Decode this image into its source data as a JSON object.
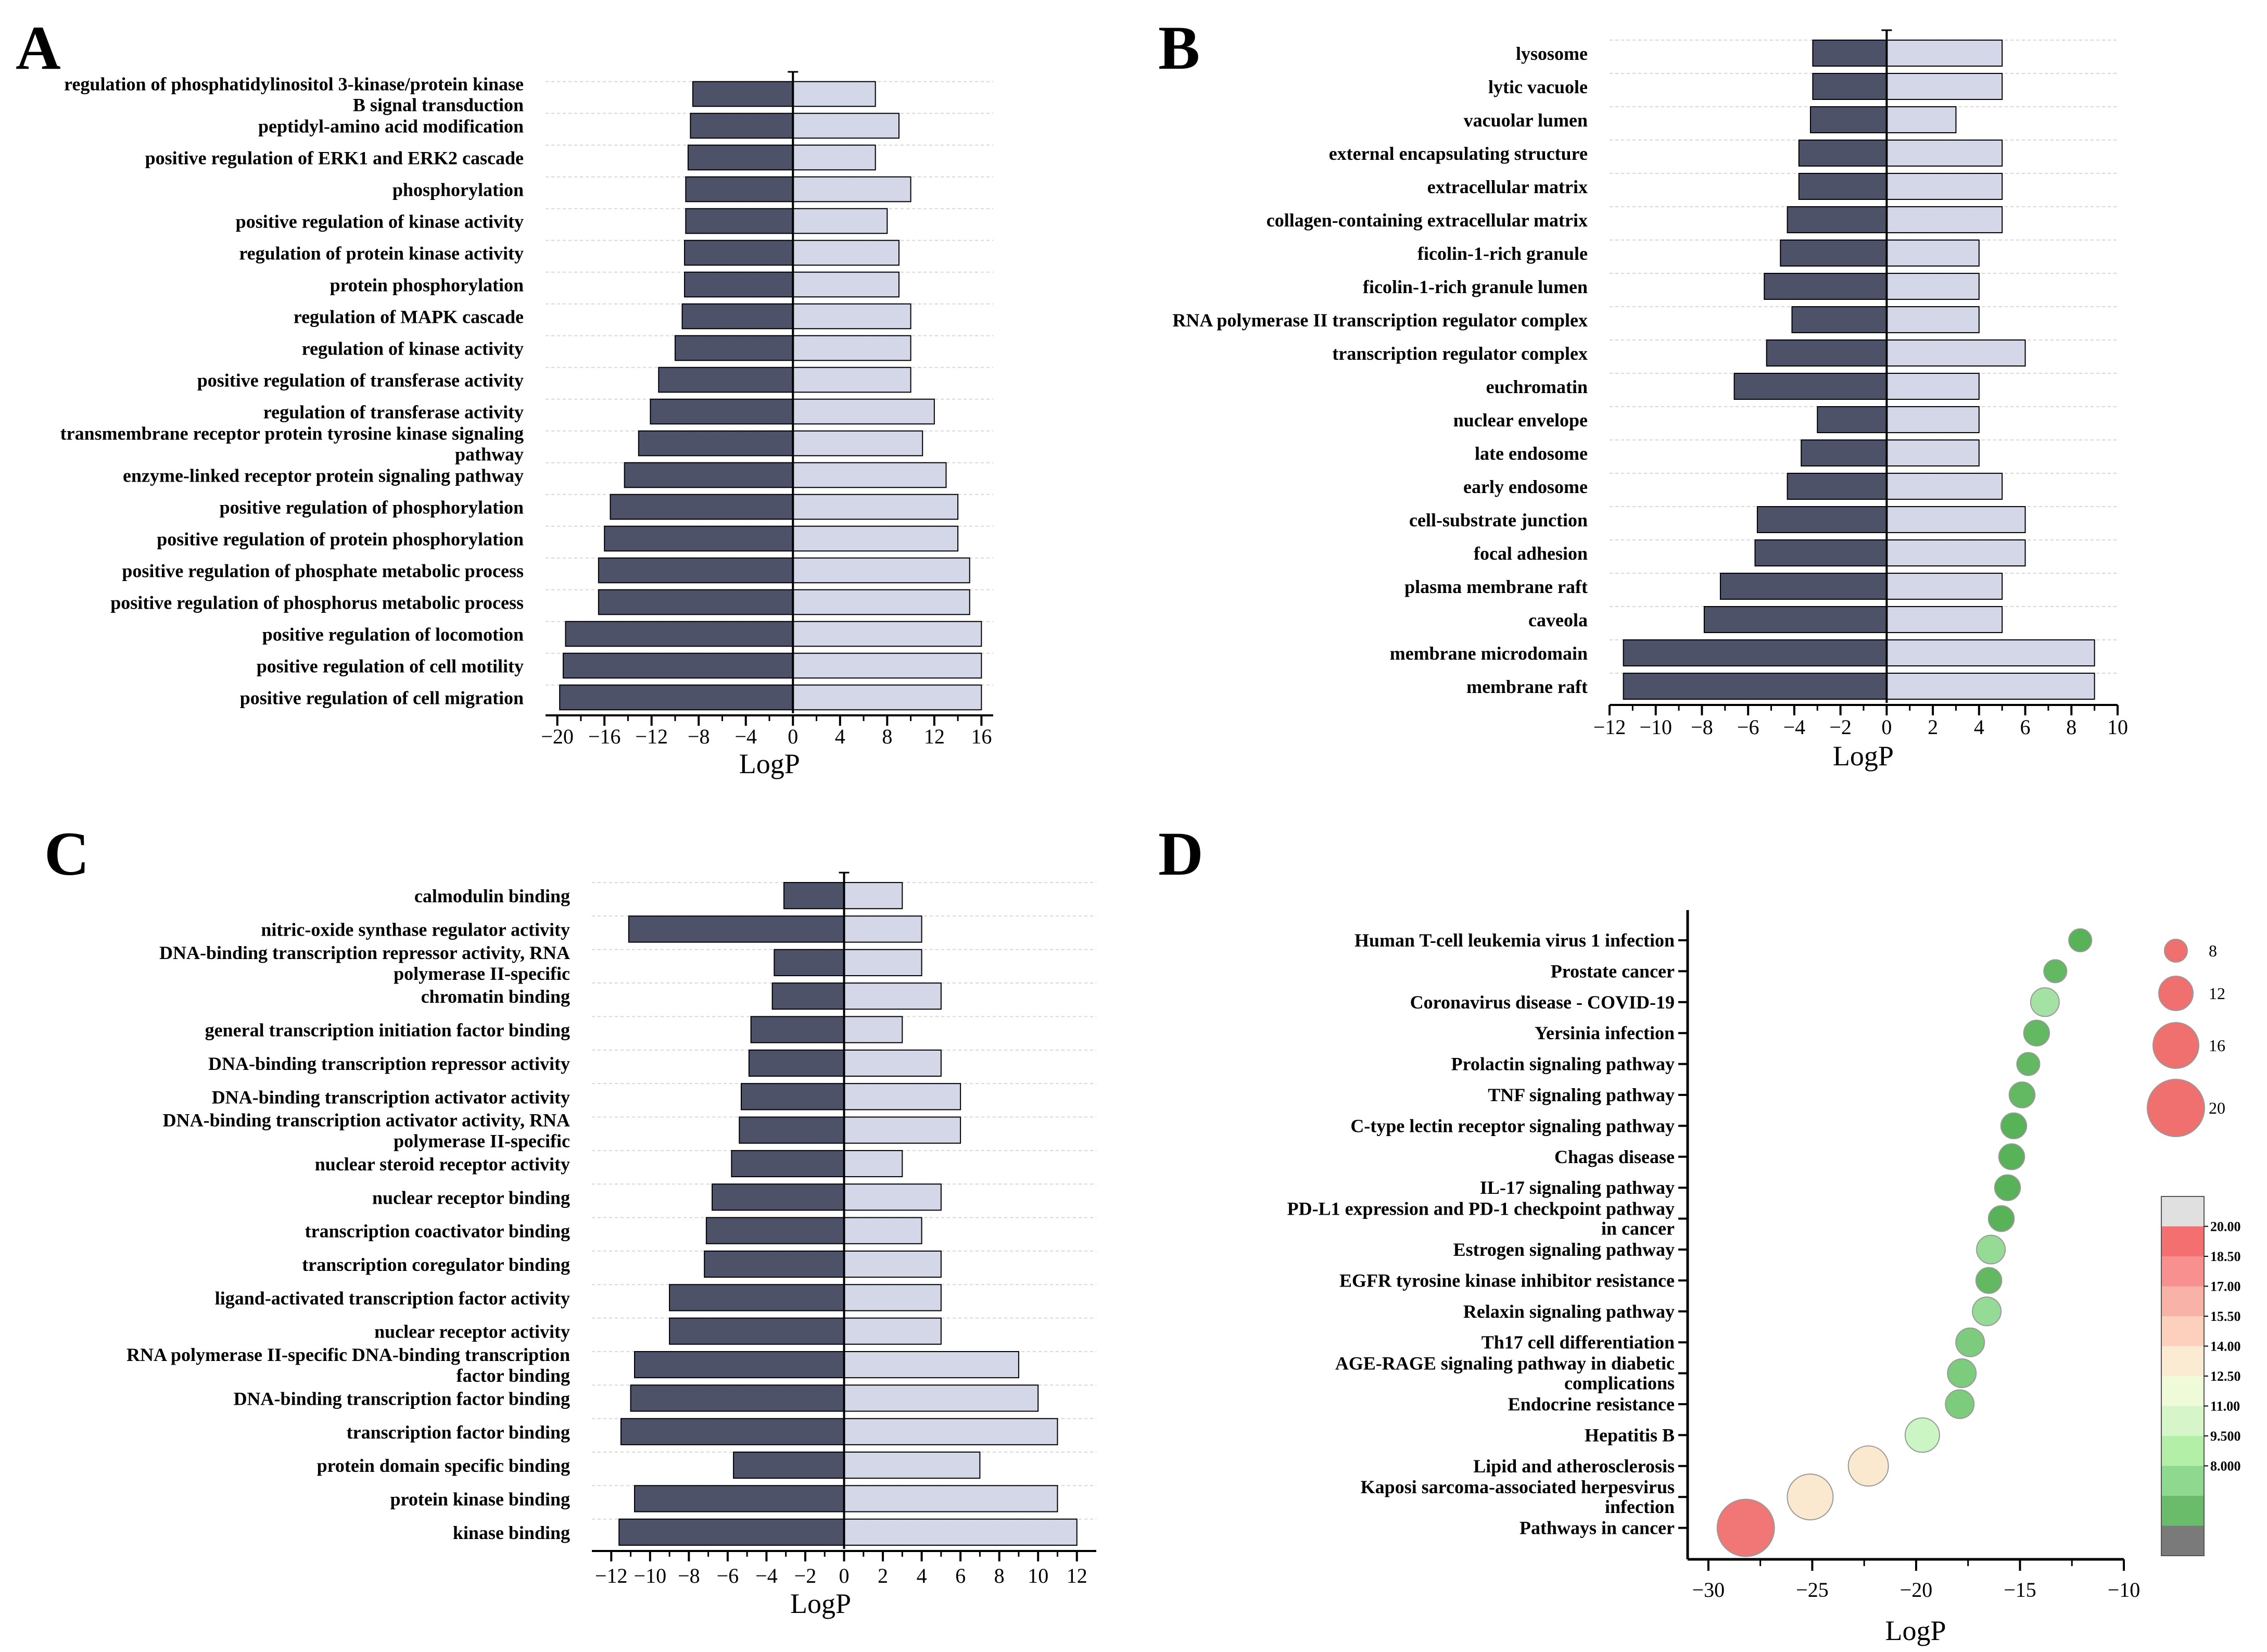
{
  "chart_data": [
    {
      "panel": "A",
      "type": "bar",
      "orientation": "horizontal",
      "categories": [
        "regulation of phosphatidylinositol 3-kinase/protein kinase B signal transduction",
        "peptidyl-amino acid modification",
        "positive regulation of ERK1 and ERK2 cascade",
        "phosphorylation",
        "positive regulation of kinase activity",
        "regulation of protein kinase activity",
        "protein phosphorylation",
        "regulation of MAPK cascade",
        "regulation of kinase activity",
        "positive regulation of transferase activity",
        "regulation of transferase activity",
        "transmembrane receptor protein tyrosine kinase signaling pathway",
        "enzyme-linked receptor protein signaling pathway",
        "positive regulation of phosphorylation",
        "positive regulation of protein phosphorylation",
        "positive regulation of phosphate metabolic process",
        "positive regulation of phosphorus metabolic process",
        "positive regulation of locomotion",
        "positive regulation of cell motility",
        "positive regulation of cell migration"
      ],
      "series": [
        {
          "name": "LogP",
          "color": "#4d5269",
          "values": [
            -8.5,
            -8.7,
            -8.9,
            -9.1,
            -9.1,
            -9.2,
            -9.2,
            -9.4,
            -10.0,
            -11.4,
            -12.1,
            -13.1,
            -14.3,
            -15.5,
            -16.0,
            -16.5,
            -16.5,
            -19.3,
            -19.5,
            -19.8
          ]
        },
        {
          "name": "-LogP",
          "color": "#d3d7e8",
          "values": [
            7.0,
            9.0,
            7.0,
            10.0,
            8.0,
            9.0,
            9.0,
            10.0,
            10.0,
            10.0,
            12.0,
            11.0,
            13.0,
            14.0,
            14.0,
            15.0,
            15.0,
            16.0,
            16.0,
            16.0
          ]
        }
      ],
      "xlabel": "LogP",
      "xlim": [
        -21,
        17
      ],
      "xticks": [
        -20,
        -16,
        -12,
        -8,
        -4,
        0,
        4,
        8,
        12,
        16
      ],
      "xtick_labels": [
        "−20",
        "−16",
        "−12",
        "−8",
        "−4",
        "0",
        "4",
        "8",
        "12",
        "16"
      ]
    },
    {
      "panel": "B",
      "type": "bar",
      "orientation": "horizontal",
      "categories": [
        "lysosome",
        "lytic vacuole",
        "vacuolar lumen",
        "external encapsulating structure",
        "extracellular matrix",
        "collagen-containing extracellular matrix",
        "ficolin-1-rich granule",
        "ficolin-1-rich granule lumen",
        "RNA polymerase II transcription regulator complex",
        "transcription regulator complex",
        "euchromatin",
        "nuclear envelope",
        "late endosome",
        "early endosome",
        "cell-substrate junction",
        "focal adhesion",
        "plasma membrane raft",
        "caveola",
        "membrane microdomain",
        "membrane raft"
      ],
      "series": [
        {
          "name": "LogP",
          "color": "#4d5269",
          "values": [
            -3.2,
            -3.2,
            -3.3,
            -3.8,
            -3.8,
            -4.3,
            -4.6,
            -5.3,
            -4.1,
            -5.2,
            -6.6,
            -3.0,
            -3.7,
            -4.3,
            -5.6,
            -5.7,
            -7.2,
            -7.9,
            -11.4,
            -11.4
          ]
        },
        {
          "name": "-LogP",
          "color": "#d3d7e8",
          "values": [
            5.0,
            5.0,
            3.0,
            5.0,
            5.0,
            5.0,
            4.0,
            4.0,
            4.0,
            6.0,
            4.0,
            4.0,
            4.0,
            5.0,
            6.0,
            6.0,
            5.0,
            5.0,
            9.0,
            9.0
          ]
        }
      ],
      "xlabel": "LogP",
      "xlim": [
        -12,
        10
      ],
      "xticks": [
        -12,
        -10,
        -8,
        -6,
        -4,
        -2,
        0,
        2,
        4,
        6,
        8,
        10
      ],
      "xtick_labels": [
        "−12",
        "−10",
        "−8",
        "−6",
        "−4",
        "−2",
        "0",
        "2",
        "4",
        "6",
        "8",
        "10"
      ]
    },
    {
      "panel": "C",
      "type": "bar",
      "orientation": "horizontal",
      "categories": [
        "calmodulin binding",
        "nitric-oxide synthase regulator activity",
        "DNA-binding transcription repressor activity, RNA polymerase II-specific",
        "chromatin binding",
        "general transcription initiation factor binding",
        "DNA-binding transcription repressor activity",
        "DNA-binding transcription activator activity",
        "DNA-binding transcription activator activity, RNA polymerase II-specific",
        "nuclear steroid receptor activity",
        "nuclear receptor binding",
        "transcription coactivator binding",
        "transcription coregulator binding",
        "ligand-activated transcription factor activity",
        "nuclear receptor activity",
        "RNA polymerase II-specific DNA-binding transcription factor binding",
        "DNA-binding transcription factor binding",
        "transcription factor binding",
        "protein domain specific binding",
        "protein kinase binding",
        "kinase binding"
      ],
      "series": [
        {
          "name": "LogP",
          "color": "#4d5269",
          "values": [
            -3.1,
            -11.1,
            -3.6,
            -3.7,
            -4.8,
            -4.9,
            -5.3,
            -5.4,
            -5.8,
            -6.8,
            -7.1,
            -7.2,
            -9.0,
            -9.0,
            -10.8,
            -11.0,
            -11.5,
            -5.7,
            -10.8,
            -11.6
          ]
        },
        {
          "name": "-LogP",
          "color": "#d3d7e8",
          "values": [
            3.0,
            4.0,
            4.0,
            5.0,
            3.0,
            5.0,
            6.0,
            6.0,
            3.0,
            5.0,
            4.0,
            5.0,
            5.0,
            5.0,
            9.0,
            10.0,
            11.0,
            7.0,
            11.0,
            12.0
          ]
        }
      ],
      "xlabel": "LogP",
      "xlim": [
        -13,
        13
      ],
      "xticks": [
        -12,
        -10,
        -8,
        -6,
        -4,
        -2,
        0,
        2,
        4,
        6,
        8,
        10,
        12
      ],
      "xtick_labels": [
        "−12",
        "−10",
        "−8",
        "−6",
        "−4",
        "−2",
        "0",
        "2",
        "4",
        "6",
        "8",
        "10",
        "12"
      ]
    },
    {
      "panel": "D",
      "type": "scatter",
      "categories": [
        "Human T-cell leukemia virus 1 infection",
        "Prostate cancer",
        "Coronavirus disease - COVID-19",
        "Yersinia infection",
        "Prolactin signaling pathway",
        "TNF signaling pathway",
        "C-type lectin receptor signaling pathway",
        "Chagas disease",
        "IL-17 signaling pathway",
        "PD-L1 expression and PD-1 checkpoint pathway in cancer",
        "Estrogen signaling pathway",
        "EGFR tyrosine kinase inhibitor resistance",
        "Relaxin signaling pathway",
        "Th17 cell differentiation",
        "AGE-RAGE signaling pathway in diabetic complications",
        "Endocrine resistance",
        "Hepatitis B",
        "Lipid and atherosclerosis",
        "Kaposi sarcoma-associated herpesvirus infection",
        "Pathways in cancer"
      ],
      "x": [
        -12.1,
        -13.3,
        -13.8,
        -14.2,
        -14.6,
        -14.9,
        -15.3,
        -15.4,
        -15.6,
        -15.9,
        -16.4,
        -16.5,
        -16.6,
        -17.4,
        -17.8,
        -17.9,
        -19.7,
        -22.3,
        -25.1,
        -28.2
      ],
      "sizes": [
        8,
        8,
        10,
        9,
        8,
        9,
        9,
        9,
        9,
        9,
        10,
        9,
        10,
        10,
        10,
        10,
        12,
        14,
        16,
        20
      ],
      "colors": [
        "#4fae4f",
        "#5ab55a",
        "#9fe09f",
        "#5ab55a",
        "#5ab55a",
        "#5ab55a",
        "#4fae4f",
        "#4fae4f",
        "#4fae4f",
        "#4fae4f",
        "#8fd88f",
        "#5ab55a",
        "#8fd88f",
        "#76c876",
        "#76c876",
        "#76c876",
        "#c8f5c0",
        "#fbe8cc",
        "#fbe8cc",
        "#f07070"
      ],
      "xlabel": "LogP",
      "xlim": [
        -31,
        -10
      ],
      "xticks": [
        -30,
        -25,
        -20,
        -15,
        -10
      ],
      "xtick_labels": [
        "−30",
        "−25",
        "−20",
        "−15",
        "−10"
      ],
      "size_legend": [
        8,
        12,
        16,
        20
      ],
      "colorbar": {
        "labels": [
          "20.00",
          "18.50",
          "17.00",
          "15.50",
          "14.00",
          "12.50",
          "11.00",
          "9.500",
          "8.000"
        ],
        "colors": [
          "#e0e0e0",
          "#f47070",
          "#f89090",
          "#f9b2a8",
          "#fcd0bc",
          "#fbebd2",
          "#eefad8",
          "#d6f5c8",
          "#b4efa8",
          "#8fd88f",
          "#6abc6a",
          "#7a7a7a"
        ]
      }
    }
  ]
}
